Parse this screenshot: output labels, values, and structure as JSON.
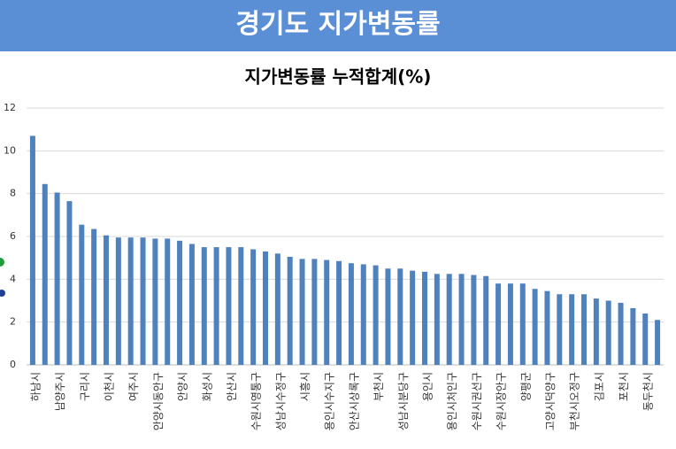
{
  "header": {
    "title": "경기도 지가변동률"
  },
  "chart_data": {
    "type": "bar",
    "title": "지가변동률 누적합계(%)",
    "categories": [
      "하남시",
      null,
      "남양주시",
      null,
      "구리시",
      null,
      "이천시",
      null,
      "여주시",
      null,
      "안양시동안구",
      null,
      "안양시",
      null,
      "화성시",
      null,
      "안산시",
      null,
      "수원시영통구",
      null,
      "성남시수정구",
      null,
      "시흥시",
      null,
      "용인시수지구",
      null,
      "안산시상록구",
      null,
      "부천시",
      null,
      "성남시분당구",
      null,
      "용인시",
      null,
      "용인시처인구",
      null,
      "수원시권선구",
      null,
      "수원시장안구",
      null,
      "양평군",
      null,
      "고양시덕양구",
      null,
      "부천시오정구",
      null,
      "김포시",
      null,
      "포천시",
      null,
      "동두천시",
      null
    ],
    "values": [
      10.7,
      8.45,
      8.05,
      7.65,
      6.55,
      6.35,
      6.05,
      5.95,
      5.95,
      5.95,
      5.9,
      5.9,
      5.8,
      5.65,
      5.5,
      5.5,
      5.5,
      5.5,
      5.4,
      5.3,
      5.2,
      5.05,
      4.95,
      4.95,
      4.9,
      4.85,
      4.75,
      4.7,
      4.65,
      4.5,
      4.5,
      4.4,
      4.35,
      4.25,
      4.25,
      4.25,
      4.2,
      4.15,
      3.8,
      3.8,
      3.8,
      3.55,
      3.45,
      3.3,
      3.3,
      3.3,
      3.1,
      3.0,
      2.9,
      2.65,
      2.4,
      2.1
    ],
    "color": "#4f81bd",
    "ylim": [
      0,
      12
    ],
    "yticks": [
      0,
      2,
      4,
      6,
      8,
      10,
      12
    ],
    "grid": true
  }
}
